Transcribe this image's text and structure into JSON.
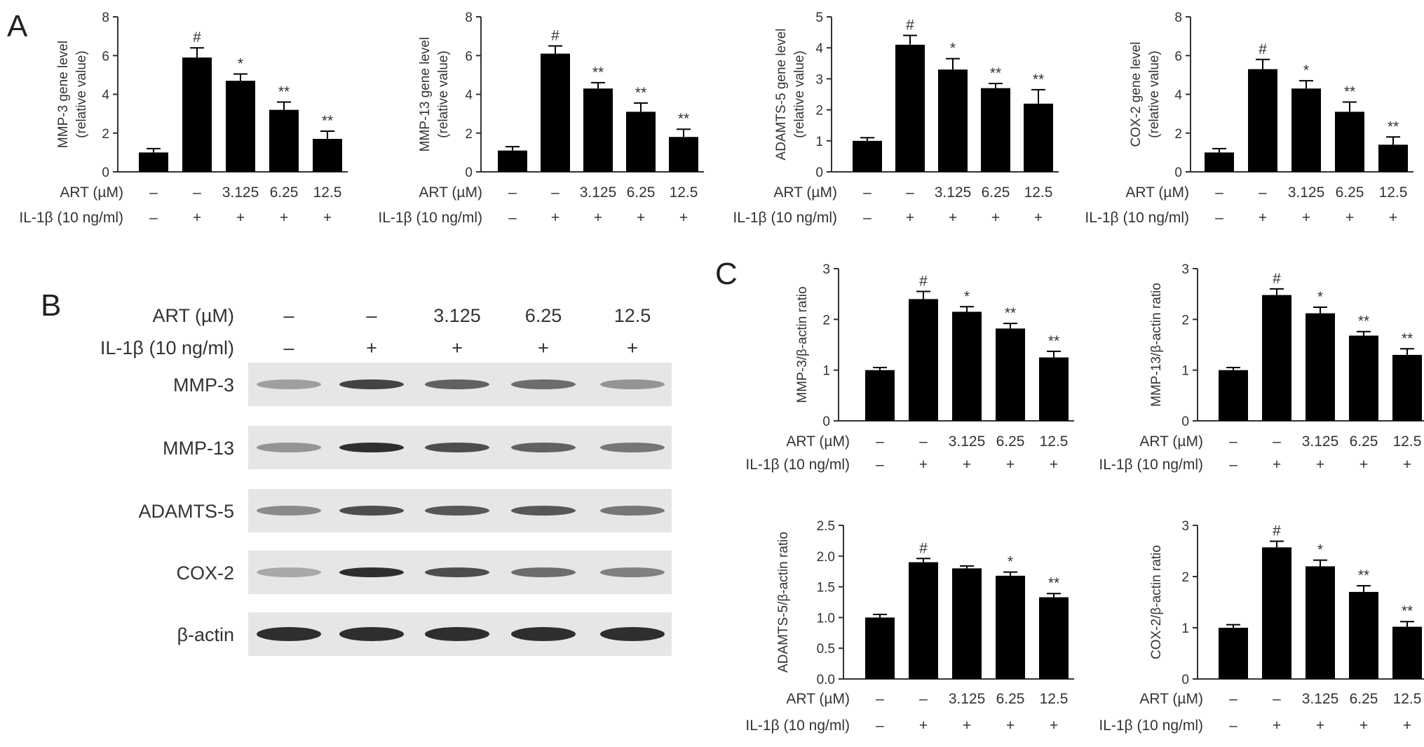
{
  "panel_letters": [
    "A",
    "B",
    "C"
  ],
  "conditions": {
    "art_label": "ART (µM)",
    "il_label": "IL-1β (10 ng/ml)",
    "art_values": [
      "–",
      "–",
      "3.125",
      "6.25",
      "12.5"
    ],
    "il_values": [
      "–",
      "+",
      "+",
      "+",
      "+"
    ]
  },
  "blot": {
    "art_label": "ART (µM)",
    "il_label": "IL-1β (10 ng/ml)",
    "art_values": [
      "–",
      "–",
      "3.125",
      "6.25",
      "12.5"
    ],
    "il_values": [
      "–",
      "+",
      "+",
      "+",
      "+"
    ],
    "rows": [
      {
        "label": "MMP-3",
        "intensity": [
          0.35,
          0.8,
          0.65,
          0.6,
          0.4
        ]
      },
      {
        "label": "MMP-13",
        "intensity": [
          0.4,
          0.9,
          0.75,
          0.65,
          0.55
        ]
      },
      {
        "label": "ADAMTS-5",
        "intensity": [
          0.45,
          0.75,
          0.7,
          0.7,
          0.55
        ]
      },
      {
        "label": "COX-2",
        "intensity": [
          0.3,
          0.9,
          0.75,
          0.6,
          0.5
        ]
      },
      {
        "label": "β-actin",
        "intensity": [
          0.9,
          0.9,
          0.9,
          0.9,
          0.9
        ]
      }
    ]
  },
  "chart_data": [
    {
      "type": "bar",
      "ylabel": [
        "MMP-3 gene level",
        "(relative value)"
      ],
      "ylim": [
        0,
        8
      ],
      "yticks": [
        "0",
        "2",
        "4",
        "6",
        "8"
      ],
      "values": [
        1.0,
        5.9,
        4.7,
        3.2,
        1.7
      ],
      "errors": [
        0.2,
        0.5,
        0.35,
        0.4,
        0.4
      ],
      "marks": [
        "",
        "#",
        "*",
        "**",
        "**"
      ]
    },
    {
      "type": "bar",
      "ylabel": [
        "MMP-13 gene level",
        "(relative value)"
      ],
      "ylim": [
        0,
        8
      ],
      "yticks": [
        "0",
        "2",
        "4",
        "6",
        "8"
      ],
      "values": [
        1.1,
        6.1,
        4.3,
        3.1,
        1.8
      ],
      "errors": [
        0.2,
        0.4,
        0.3,
        0.45,
        0.4
      ],
      "marks": [
        "",
        "#",
        "**",
        "**",
        "**"
      ]
    },
    {
      "type": "bar",
      "ylabel": [
        "ADAMTS-5 gene level",
        "(relative value)"
      ],
      "ylim": [
        0,
        5
      ],
      "yticks": [
        "0",
        "1",
        "2",
        "3",
        "4",
        "5"
      ],
      "values": [
        1.0,
        4.1,
        3.3,
        2.7,
        2.2
      ],
      "errors": [
        0.1,
        0.3,
        0.35,
        0.15,
        0.45
      ],
      "marks": [
        "",
        "#",
        "*",
        "**",
        "**"
      ]
    },
    {
      "type": "bar",
      "ylabel": [
        "COX-2 gene level",
        "(relative value)"
      ],
      "ylim": [
        0,
        8
      ],
      "yticks": [
        "0",
        "2",
        "4",
        "6",
        "8"
      ],
      "values": [
        1.0,
        5.3,
        4.3,
        3.1,
        1.4
      ],
      "errors": [
        0.2,
        0.5,
        0.4,
        0.5,
        0.4
      ],
      "marks": [
        "",
        "#",
        "*",
        "**",
        "**"
      ]
    },
    {
      "type": "bar",
      "ylabel": [
        "MMP-3/β-actin ratio"
      ],
      "ylim": [
        0,
        3
      ],
      "yticks": [
        "0",
        "1",
        "2",
        "3"
      ],
      "values": [
        1.0,
        2.4,
        2.15,
        1.82,
        1.25
      ],
      "errors": [
        0.05,
        0.15,
        0.1,
        0.1,
        0.12
      ],
      "marks": [
        "",
        "#",
        "*",
        "**",
        "**"
      ]
    },
    {
      "type": "bar",
      "ylabel": [
        "MMP-13/β-actin ratio"
      ],
      "ylim": [
        0,
        3
      ],
      "yticks": [
        "0",
        "1",
        "2",
        "3"
      ],
      "values": [
        1.0,
        2.48,
        2.12,
        1.68,
        1.3
      ],
      "errors": [
        0.05,
        0.12,
        0.12,
        0.08,
        0.12
      ],
      "marks": [
        "",
        "#",
        "*",
        "**",
        "**"
      ]
    },
    {
      "type": "bar",
      "ylabel": [
        "ADAMTS-5/β-actin ratio"
      ],
      "ylim": [
        0,
        2.5
      ],
      "yticks": [
        "0.0",
        "0.5",
        "1.0",
        "1.5",
        "2.0",
        "2.5"
      ],
      "values": [
        1.0,
        1.9,
        1.8,
        1.68,
        1.33
      ],
      "errors": [
        0.05,
        0.06,
        0.04,
        0.06,
        0.06
      ],
      "marks": [
        "",
        "#",
        "",
        "*",
        "**"
      ]
    },
    {
      "type": "bar",
      "ylabel": [
        "COX-2/β-actin ratio"
      ],
      "ylim": [
        0,
        3
      ],
      "yticks": [
        "0",
        "1",
        "2",
        "3"
      ],
      "values": [
        1.0,
        2.57,
        2.2,
        1.7,
        1.02
      ],
      "errors": [
        0.06,
        0.12,
        0.12,
        0.12,
        0.1
      ],
      "marks": [
        "",
        "#",
        "*",
        "**",
        "**"
      ]
    }
  ]
}
